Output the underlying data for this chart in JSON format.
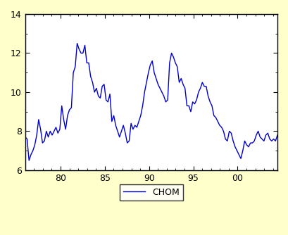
{
  "title": "",
  "xlabel": "",
  "ylabel": "",
  "line_color": "#0000CC",
  "line_width": 1.0,
  "background_color": "#FFFFCC",
  "plot_background": "#FFFFFF",
  "legend_label": "CHOM",
  "x_start": 76.0,
  "x_end": 104.5,
  "ylim": [
    6,
    14
  ],
  "xlim": [
    76.0,
    104.5
  ],
  "xtick_positions": [
    80,
    85,
    90,
    95,
    100
  ],
  "xtick_labels": [
    "80",
    "85",
    "90",
    "95",
    "00"
  ],
  "yticks": [
    6,
    8,
    10,
    12,
    14
  ],
  "values": [
    7.7,
    7.6,
    6.5,
    6.8,
    7.0,
    7.3,
    7.8,
    8.6,
    8.1,
    7.4,
    7.5,
    8.0,
    7.7,
    8.0,
    7.8,
    8.0,
    8.2,
    7.9,
    8.1,
    9.3,
    8.6,
    8.1,
    8.8,
    9.1,
    9.2,
    11.0,
    11.3,
    12.5,
    12.2,
    12.0,
    12.0,
    12.4,
    11.5,
    11.5,
    10.8,
    10.5,
    10.0,
    10.2,
    9.8,
    9.7,
    10.3,
    10.4,
    9.6,
    9.5,
    9.9,
    8.5,
    8.8,
    8.3,
    8.0,
    7.7,
    8.0,
    8.3,
    7.9,
    7.4,
    7.5,
    8.4,
    8.1,
    8.3,
    8.2,
    8.5,
    8.8,
    9.3,
    10.0,
    10.5,
    11.0,
    11.4,
    11.6,
    11.0,
    10.7,
    10.4,
    10.2,
    10.0,
    9.8,
    9.5,
    9.6,
    11.5,
    12.0,
    11.8,
    11.5,
    11.3,
    10.5,
    10.7,
    10.4,
    10.2,
    9.3,
    9.3,
    9.0,
    9.5,
    9.4,
    9.6,
    10.0,
    10.2,
    10.5,
    10.3,
    10.3,
    9.8,
    9.5,
    9.3,
    8.8,
    8.7,
    8.5,
    8.3,
    8.2,
    8.0,
    7.6,
    7.5,
    8.0,
    7.9,
    7.5,
    7.2,
    7.0,
    6.8,
    6.6,
    7.0,
    7.5,
    7.3,
    7.2,
    7.4,
    7.4,
    7.5,
    7.8,
    8.0,
    7.7,
    7.6,
    7.5,
    7.8,
    7.9,
    7.6,
    7.5,
    7.6,
    7.5,
    7.8
  ]
}
